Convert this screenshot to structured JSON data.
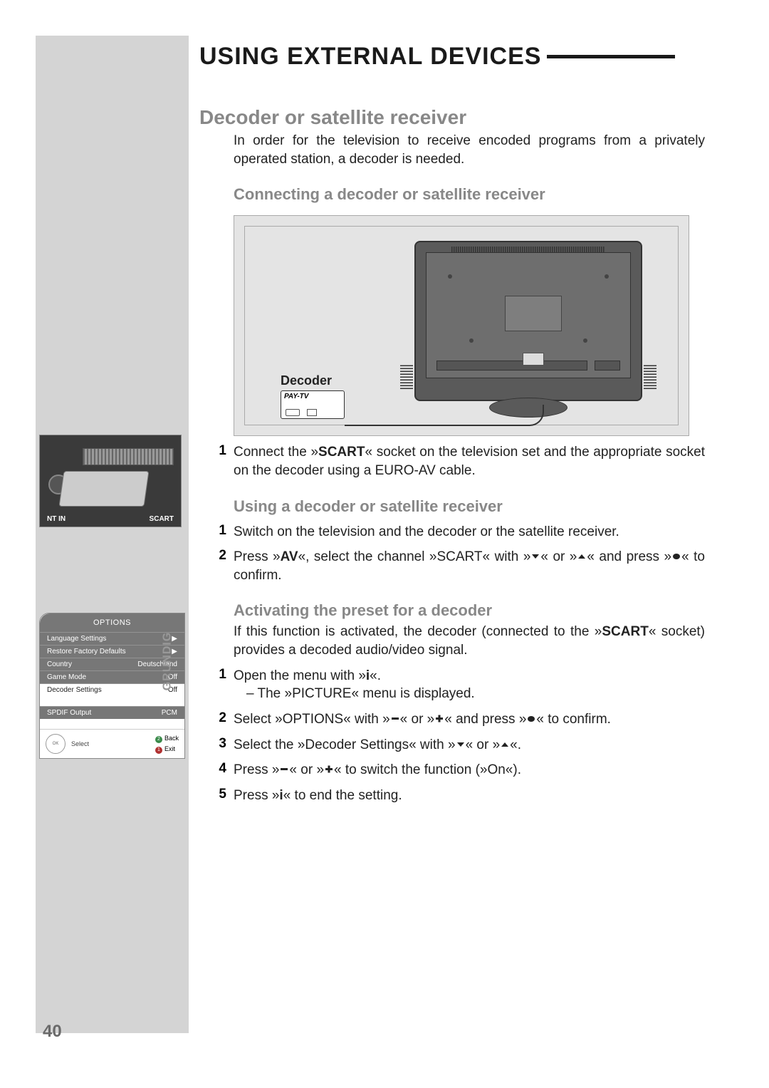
{
  "page": {
    "number": "40",
    "title": "USING EXTERNAL DEVICES"
  },
  "section": {
    "h2": "Decoder or satellite receiver",
    "intro": "In order for the television to receive encoded programs from a privately operated station, a decoder is needed.",
    "connecting": {
      "h3": "Connecting a decoder or satellite receiver",
      "diagram": {
        "decoder_label": "Decoder",
        "paytv_label": "PAY-TV"
      },
      "step1_a": "Connect the »",
      "step1_b": "SCART",
      "step1_c": "« socket on the television set and the appropriate socket on the decoder using a EURO-AV cable."
    },
    "using": {
      "h3": "Using a decoder or satellite receiver",
      "step1": "Switch on the television and the decoder or the satellite receiver.",
      "step2_a": "Press »",
      "step2_b": "AV",
      "step2_c": "«, select the channel »SCART« with »",
      "step2_d": "« or »",
      "step2_e": "« and press »",
      "step2_f": "« to confirm."
    },
    "activating": {
      "h3": "Activating the preset for a decoder",
      "intro_a": "If this function is activated, the decoder (connected to the »",
      "intro_b": "SCART",
      "intro_c": "« socket) provides a decoded audio/video signal.",
      "step1_a": "Open the menu with »",
      "step1_b": "«.",
      "step1_sub": "– The »PICTURE« menu is displayed.",
      "step2_a": "Select »OPTIONS« with »",
      "step2_b": "« or »",
      "step2_c": "« and press »",
      "step2_d": "« to confirm.",
      "step3_a": "Select the »Decoder Settings« with »",
      "step3_b": "« or »",
      "step3_c": "«.",
      "step4_a": "Press »",
      "step4_b": "« or »",
      "step4_c": "« to switch the function (»On«).",
      "step5_a": "Press »",
      "step5_b": "« to end the setting."
    }
  },
  "side_scart": {
    "label_left": "NT IN",
    "label_right": "SCART"
  },
  "osd": {
    "title": "OPTIONS",
    "brand": "GRUNDIG",
    "rows": [
      {
        "label": "Language Settings",
        "value": "▶",
        "hl": false
      },
      {
        "label": "Restore Factory Defaults",
        "value": "▶",
        "hl": false
      },
      {
        "label": "Country",
        "value": "Deutschland",
        "hl": false
      },
      {
        "label": "Game Mode",
        "value": "Off",
        "hl": false
      },
      {
        "label": "Decoder Settings",
        "value": "Off",
        "hl": true
      }
    ],
    "spdif": {
      "label": "SPDIF Output",
      "value": "PCM"
    },
    "footer": {
      "select": "Select",
      "back": "Back",
      "exit": "Exit",
      "back_num": "2",
      "exit_num": "1"
    }
  },
  "colors": {
    "sidebar_bg": "#d4d4d4",
    "heading_grey": "#888888",
    "osd_row_bg": "#777777",
    "osd_hl_bg": "#ffffff",
    "dot_green": "#3a8a4a",
    "dot_red": "#b03030"
  }
}
